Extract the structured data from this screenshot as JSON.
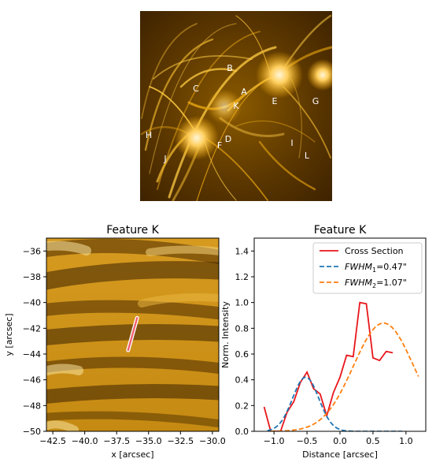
{
  "top_panel": {
    "feature_labels": [
      "B",
      "C",
      "A",
      "K",
      "E",
      "G",
      "H",
      "F",
      "D",
      "I",
      "L",
      "J"
    ]
  },
  "chart_data": [
    {
      "type": "image",
      "title": "Feature K",
      "xlabel": "x [arcsec]",
      "ylabel": "y [arcsec]",
      "xlim": [
        -43,
        -29.5
      ],
      "ylim": [
        -50,
        -35
      ],
      "xticks": [
        -42.5,
        -40.0,
        -37.5,
        -35.0,
        -32.5,
        -30.0
      ],
      "xtick_labels": [
        "−42.5",
        "−40.0",
        "−37.5",
        "−35.0",
        "−32.5",
        "−30.0"
      ],
      "yticks": [
        -36,
        -38,
        -40,
        -42,
        -44,
        -46,
        -48,
        -50
      ],
      "ytick_labels": [
        "−36",
        "−38",
        "−40",
        "−42",
        "−44",
        "−46",
        "−48",
        "−50"
      ],
      "cut_line": {
        "x": [
          -36.6,
          -35.9
        ],
        "y": [
          -43.7,
          -41.2
        ],
        "color": "#f06070"
      }
    },
    {
      "type": "line",
      "title": "Feature K",
      "xlabel": "Distance [arcsec]",
      "ylabel": "Norm. Intensity",
      "xlim": [
        -1.3,
        1.3
      ],
      "ylim": [
        0,
        1.5
      ],
      "xticks": [
        -1.0,
        -0.5,
        0.0,
        0.5,
        1.0
      ],
      "xtick_labels": [
        "−1.0",
        "−0.5",
        "0.0",
        "0.5",
        "1.0"
      ],
      "yticks": [
        0.0,
        0.2,
        0.4,
        0.6,
        0.8,
        1.0,
        1.2,
        1.4
      ],
      "ytick_labels": [
        "0.0",
        "0.2",
        "0.4",
        "0.6",
        "0.8",
        "1.0",
        "1.2",
        "1.4"
      ],
      "legend_position": "top-right",
      "series": [
        {
          "name": "Cross Section",
          "style": "solid",
          "color": "#e8161b",
          "x": [
            -1.15,
            -1.05,
            -0.9,
            -0.8,
            -0.7,
            -0.6,
            -0.5,
            -0.4,
            -0.3,
            -0.2,
            -0.1,
            0.0,
            0.1,
            0.2,
            0.3,
            0.4,
            0.5,
            0.6,
            0.7,
            0.8,
            0.9,
            1.0,
            1.1,
            1.2
          ],
          "y": [
            0.19,
            0.0,
            0.0,
            0.15,
            0.23,
            0.38,
            0.46,
            0.33,
            0.29,
            0.12,
            0.3,
            0.42,
            0.59,
            0.58,
            1.0,
            0.99,
            0.57,
            0.55,
            0.62,
            0.61,
            0.0,
            0.0,
            0.0,
            0.0
          ]
        },
        {
          "name": "FWHM₁=0.47\"",
          "label_main": "FWHM",
          "label_sub": "1",
          "label_value": "=0.47\"",
          "style": "dashed",
          "color": "#1f77b4",
          "gauss": {
            "amp": 0.42,
            "center": -0.52,
            "fwhm": 0.47
          }
        },
        {
          "name": "FWHM₂=1.07\"",
          "label_main": "FWHM",
          "label_sub": "2",
          "label_value": "=1.07\"",
          "style": "dashed",
          "color": "#ff7f0e",
          "gauss": {
            "amp": 0.84,
            "center": 0.66,
            "fwhm": 1.07
          }
        }
      ]
    }
  ]
}
